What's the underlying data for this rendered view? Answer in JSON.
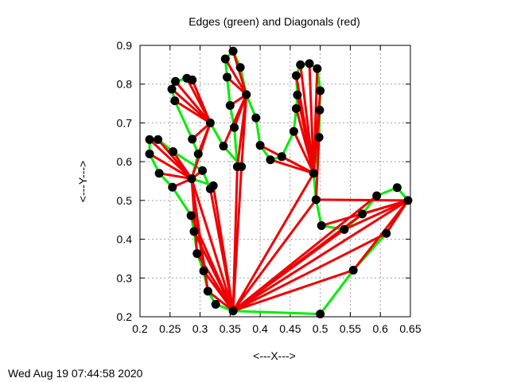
{
  "chart_data": {
    "type": "line",
    "title": "Edges (green) and Diagonals (red)",
    "xlabel": "<---X--->",
    "ylabel": "<---Y--->",
    "xlim": [
      0.2,
      0.65
    ],
    "ylim": [
      0.2,
      0.9
    ],
    "xticks": [
      "0.2",
      "0.25",
      "0.3",
      "0.35",
      "0.4",
      "0.45",
      "0.5",
      "0.55",
      "0.6",
      "0.65"
    ],
    "yticks": [
      "0.2",
      "0.3",
      "0.4",
      "0.5",
      "0.6",
      "0.7",
      "0.8",
      "0.9"
    ],
    "grid": true,
    "edge_color": "#00ee00",
    "diagonal_color": "#ee0000",
    "vertex_color": "#000000",
    "vertices": [
      [
        0.355,
        0.215
      ],
      [
        0.5,
        0.207
      ],
      [
        0.555,
        0.32
      ],
      [
        0.61,
        0.415
      ],
      [
        0.646,
        0.5
      ],
      [
        0.628,
        0.533
      ],
      [
        0.594,
        0.512
      ],
      [
        0.57,
        0.465
      ],
      [
        0.54,
        0.425
      ],
      [
        0.502,
        0.435
      ],
      [
        0.493,
        0.502
      ],
      [
        0.489,
        0.57
      ],
      [
        0.498,
        0.663
      ],
      [
        0.499,
        0.733
      ],
      [
        0.5,
        0.783
      ],
      [
        0.495,
        0.84
      ],
      [
        0.482,
        0.853
      ],
      [
        0.467,
        0.85
      ],
      [
        0.46,
        0.822
      ],
      [
        0.462,
        0.772
      ],
      [
        0.46,
        0.737
      ],
      [
        0.456,
        0.678
      ],
      [
        0.436,
        0.613
      ],
      [
        0.417,
        0.605
      ],
      [
        0.4,
        0.642
      ],
      [
        0.393,
        0.713
      ],
      [
        0.377,
        0.773
      ],
      [
        0.367,
        0.843
      ],
      [
        0.355,
        0.885
      ],
      [
        0.342,
        0.865
      ],
      [
        0.345,
        0.818
      ],
      [
        0.35,
        0.745
      ],
      [
        0.357,
        0.688
      ],
      [
        0.362,
        0.587
      ],
      [
        0.369,
        0.587
      ],
      [
        0.339,
        0.64
      ],
      [
        0.317,
        0.7
      ],
      [
        0.287,
        0.811
      ],
      [
        0.278,
        0.815
      ],
      [
        0.259,
        0.807
      ],
      [
        0.253,
        0.787
      ],
      [
        0.258,
        0.757
      ],
      [
        0.287,
        0.658
      ],
      [
        0.297,
        0.62
      ],
      [
        0.286,
        0.556
      ],
      [
        0.322,
        0.538
      ],
      [
        0.317,
        0.53
      ],
      [
        0.304,
        0.577
      ],
      [
        0.255,
        0.626
      ],
      [
        0.23,
        0.657
      ],
      [
        0.216,
        0.657
      ],
      [
        0.216,
        0.62
      ],
      [
        0.232,
        0.57
      ],
      [
        0.254,
        0.534
      ],
      [
        0.285,
        0.461
      ],
      [
        0.29,
        0.42
      ],
      [
        0.295,
        0.363
      ],
      [
        0.306,
        0.318
      ],
      [
        0.313,
        0.266
      ],
      [
        0.326,
        0.232
      ]
    ],
    "diagonals": [
      [
        0,
        2
      ],
      [
        0,
        3
      ],
      [
        0,
        4
      ],
      [
        0,
        6
      ],
      [
        0,
        7
      ],
      [
        0,
        8
      ],
      [
        0,
        10
      ],
      [
        0,
        11
      ],
      [
        0,
        33
      ],
      [
        0,
        34
      ],
      [
        0,
        44
      ],
      [
        0,
        45
      ],
      [
        0,
        46
      ],
      [
        0,
        54
      ],
      [
        0,
        55
      ],
      [
        0,
        56
      ],
      [
        0,
        57
      ],
      [
        0,
        58
      ],
      [
        2,
        4
      ],
      [
        3,
        4
      ],
      [
        4,
        7
      ],
      [
        4,
        8
      ],
      [
        4,
        9
      ],
      [
        4,
        10
      ],
      [
        10,
        12
      ],
      [
        11,
        13
      ],
      [
        11,
        14
      ],
      [
        11,
        15
      ],
      [
        11,
        16
      ],
      [
        11,
        17
      ],
      [
        11,
        18
      ],
      [
        11,
        19
      ],
      [
        11,
        20
      ],
      [
        11,
        21
      ],
      [
        11,
        22
      ],
      [
        11,
        23
      ],
      [
        11,
        24
      ],
      [
        26,
        28
      ],
      [
        26,
        29
      ],
      [
        26,
        30
      ],
      [
        26,
        31
      ],
      [
        26,
        32
      ],
      [
        26,
        33
      ],
      [
        26,
        34
      ],
      [
        26,
        35
      ],
      [
        36,
        38
      ],
      [
        36,
        39
      ],
      [
        36,
        40
      ],
      [
        36,
        41
      ],
      [
        36,
        42
      ],
      [
        36,
        43
      ],
      [
        36,
        44
      ],
      [
        36,
        37
      ],
      [
        44,
        47
      ],
      [
        44,
        48
      ],
      [
        44,
        49
      ],
      [
        44,
        50
      ],
      [
        44,
        51
      ],
      [
        44,
        52
      ],
      [
        44,
        53
      ],
      [
        44,
        56
      ],
      [
        44,
        57
      ],
      [
        44,
        58
      ]
    ]
  },
  "timestamp": "Wed Aug 19 07:44:58 2020"
}
